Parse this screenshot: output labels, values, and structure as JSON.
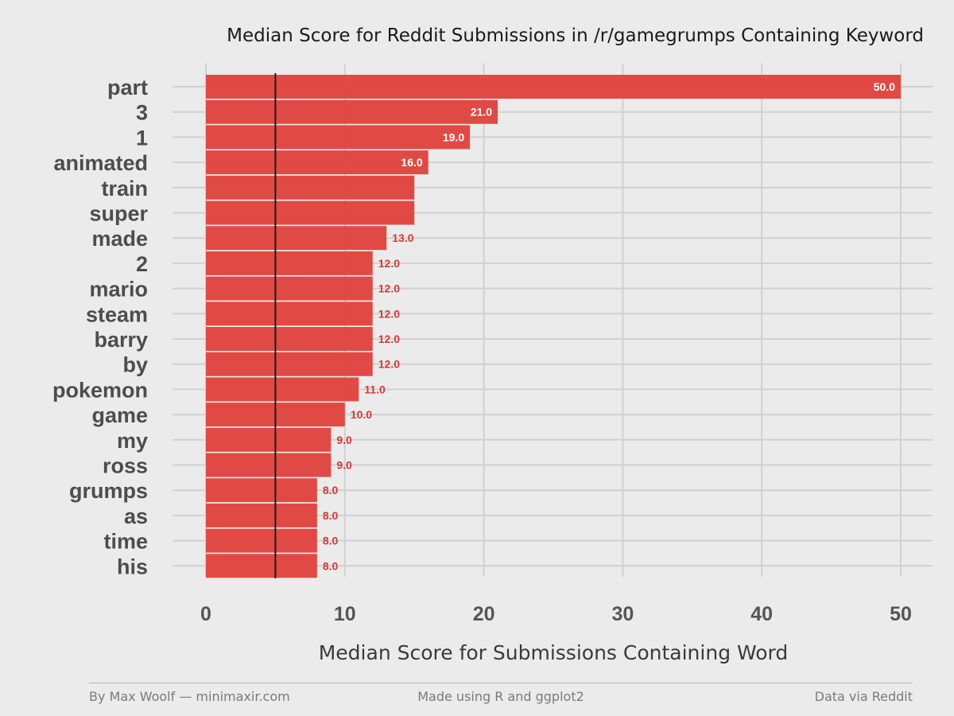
{
  "chart_data": {
    "type": "bar",
    "orientation": "horizontal",
    "title": "Median Score for Reddit Submissions in /r/gamegrumps Containing Keyword",
    "xlabel": "Median Score for Submissions Containing Word",
    "ylabel": "",
    "categories": [
      "part",
      "3",
      "1",
      "animated",
      "train",
      "super",
      "made",
      "2",
      "mario",
      "steam",
      "barry",
      "by",
      "pokemon",
      "game",
      "my",
      "ross",
      "grumps",
      "as",
      "time",
      "his"
    ],
    "values": [
      50,
      21,
      19,
      16,
      15,
      15,
      13,
      12,
      12,
      12,
      12,
      12,
      11,
      10,
      9,
      9,
      8,
      8,
      8,
      8
    ],
    "data_labels": [
      "50.0",
      "21.0",
      "19.0",
      "16.0",
      "",
      "",
      "13.0",
      "12.0",
      "12.0",
      "12.0",
      "12.0",
      "12.0",
      "11.0",
      "10.0",
      "9.0",
      "9.0",
      "8.0",
      "8.0",
      "8.0",
      "8.0"
    ],
    "xlim": [
      0,
      50
    ],
    "xticks": [
      0,
      10,
      20,
      30,
      40,
      50
    ],
    "reference_line": 5,
    "grid": true,
    "bar_color": "#e0413b",
    "label_inside_color": "#ffffff",
    "label_outside_color": "#d23a35",
    "background": "#ebebeb"
  },
  "footer": {
    "left": "By Max Woolf — minimaxir.com",
    "center": "Made using R and ggplot2",
    "right": "Data via Reddit"
  }
}
